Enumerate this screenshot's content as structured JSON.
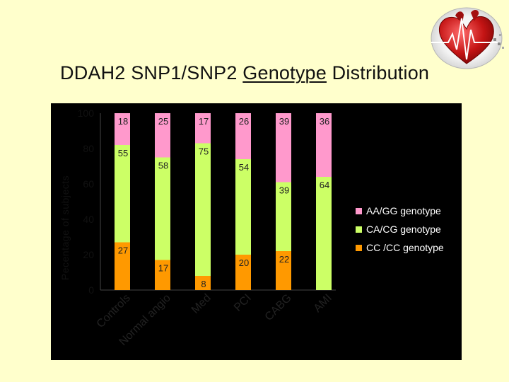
{
  "title": {
    "before": "DDAH2 SNP1/SNP2 ",
    "underlined": "Genotype",
    "after": " Distribution"
  },
  "chart_data": {
    "type": "bar",
    "stacked": true,
    "title": "DDAH2 SNP1/SNP2 Genotype Distribution",
    "ylabel": "Pecentage of subjects",
    "xlabel": "",
    "ylim": [
      0,
      100
    ],
    "yticks": [
      0,
      20,
      40,
      60,
      80,
      100
    ],
    "categories": [
      "Controls",
      "Normal angio",
      "Med",
      "PCI",
      "CABG",
      "AMI"
    ],
    "series": [
      {
        "name": "CC /CC genotype",
        "color": "#ff9900",
        "values": [
          27,
          17,
          8,
          20,
          22,
          0
        ],
        "labels": [
          "27",
          "17",
          "8",
          "20",
          "22",
          ""
        ]
      },
      {
        "name": "CA/CG genotype",
        "color": "#ccff66",
        "values": [
          55,
          58,
          75,
          54,
          39,
          64
        ],
        "labels": [
          "55",
          "58",
          "75",
          "54",
          "39",
          "64"
        ]
      },
      {
        "name": "AA/GG genotype",
        "color": "#ff99cc",
        "values": [
          18,
          25,
          17,
          26,
          39,
          36
        ],
        "labels": [
          "18",
          "25",
          "17",
          "26",
          "39",
          "36"
        ]
      }
    ],
    "legend_order": [
      "AA/GG genotype",
      "CA/CG genotype",
      "CC /CC genotype"
    ],
    "legend_position": "right",
    "plot_background": "#000000"
  },
  "colors": {
    "slide_background": "#ffffcc",
    "plot_background": "#000000"
  },
  "icons": {
    "logo": "heart-ecg-icon"
  }
}
